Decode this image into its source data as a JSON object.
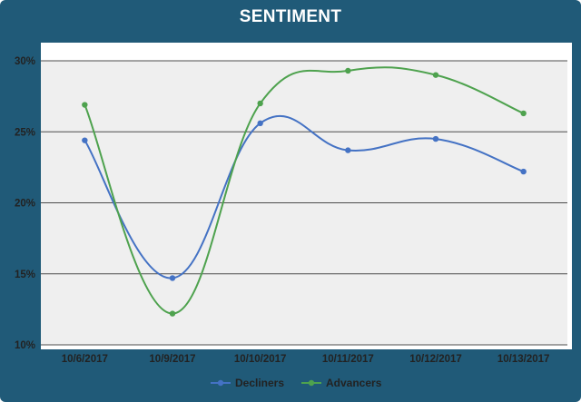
{
  "colors": {
    "frame": "#205a78",
    "plot_bg": "#efefef",
    "gridline": "#4d4d4d",
    "decliners": "#4472c4",
    "advancers": "#4ea24e"
  },
  "chart_data": {
    "type": "line",
    "title": "SENTIMENT",
    "categories": [
      "10/6/2017",
      "10/9/2017",
      "10/10/2017",
      "10/11/2017",
      "10/12/2017",
      "10/13/2017"
    ],
    "series": [
      {
        "name": "Decliners",
        "values": [
          24.4,
          14.7,
          25.6,
          23.7,
          24.5,
          22.2
        ],
        "color": "#4472c4"
      },
      {
        "name": "Advancers",
        "values": [
          26.9,
          12.2,
          27.0,
          29.3,
          29.0,
          26.3
        ],
        "color": "#4ea24e"
      }
    ],
    "ylim": [
      10,
      30
    ],
    "yticks": [
      10,
      15,
      20,
      25,
      30
    ],
    "ytick_labels": [
      "10%",
      "15%",
      "20%",
      "25%",
      "30%"
    ],
    "grid": true,
    "smooth": true,
    "legend": "bottom"
  }
}
